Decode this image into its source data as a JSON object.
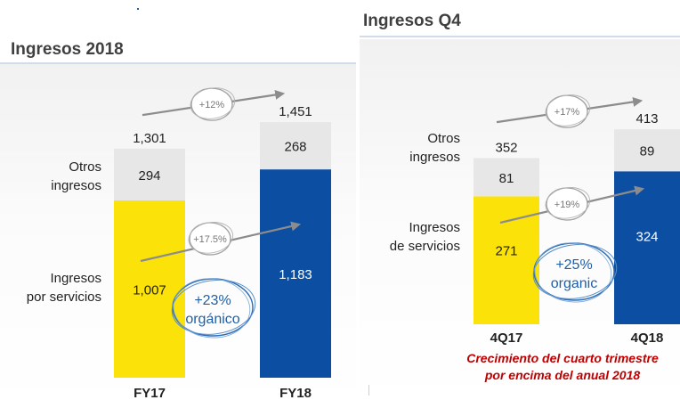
{
  "colors": {
    "services_fy17": "#fbe30a",
    "services_fy18": "#0b4ea2",
    "others": "#e7e7e7",
    "growth_arrow": "#8c8c8c",
    "organic_text": "#1f5fa8",
    "note": "#c00000"
  },
  "chart_data": [
    {
      "type": "bar",
      "stacked": true,
      "title": "Ingresos 2018",
      "categories": [
        "FY17",
        "FY18"
      ],
      "series": [
        {
          "name": "Ingresos por servicios",
          "values": [
            1007,
            1183
          ]
        },
        {
          "name": "Otros ingresos",
          "values": [
            294,
            268
          ]
        }
      ],
      "totals": [
        1301,
        1451
      ],
      "labels": {
        "values": [
          "1,007",
          "1,183"
        ],
        "others": [
          "294",
          "268"
        ],
        "totals": [
          "1,301",
          "1,451"
        ],
        "series_top": [
          "Otros",
          "ingresos"
        ],
        "series_bottom": [
          "Ingresos",
          "por servicios"
        ]
      },
      "annotations": {
        "total_growth": "+12%",
        "services_growth": "+17.5%",
        "organic_growth": [
          "+23%",
          "orgánico"
        ]
      }
    },
    {
      "type": "bar",
      "stacked": true,
      "title": "Ingresos Q4",
      "categories": [
        "4Q17",
        "4Q18"
      ],
      "series": [
        {
          "name": "Ingresos de servicios",
          "values": [
            271,
            324
          ]
        },
        {
          "name": "Otros ingresos",
          "values": [
            81,
            89
          ]
        }
      ],
      "totals": [
        352,
        413
      ],
      "labels": {
        "values": [
          "271",
          "324"
        ],
        "others": [
          "81",
          "89"
        ],
        "totals": [
          "352",
          "413"
        ],
        "series_top": [
          "Otros",
          "ingresos"
        ],
        "series_bottom": [
          "Ingresos",
          "de servicios"
        ]
      },
      "annotations": {
        "total_growth": "+17%",
        "services_growth": "+19%",
        "organic_growth": [
          "+25%",
          "organic"
        ]
      }
    }
  ],
  "footnote": {
    "lines": [
      "Crecimiento del cuarto trimestre",
      "por encima del anual 2018"
    ]
  }
}
